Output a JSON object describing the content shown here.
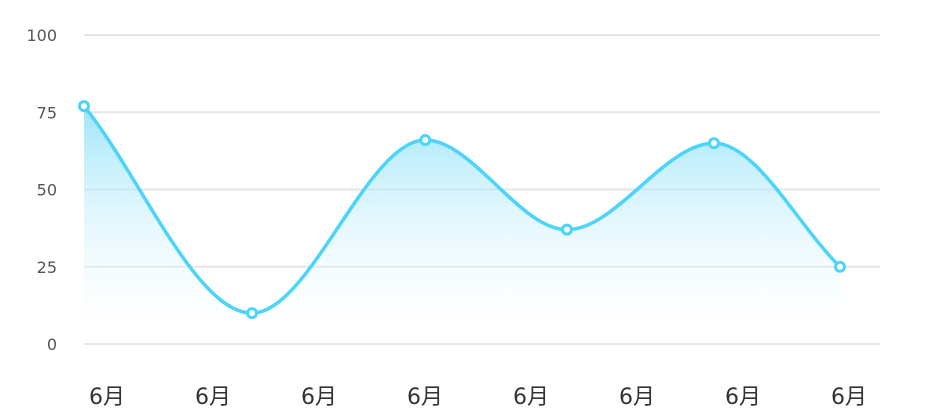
{
  "chart_data": {
    "type": "area",
    "title": "",
    "xlabel": "",
    "ylabel": "",
    "categories": [
      "6月",
      "6月",
      "6月",
      "6月",
      "6月",
      "6月",
      "6月",
      "6月"
    ],
    "x": [
      0,
      1.6,
      3.25,
      4.6,
      6,
      7.2
    ],
    "series": [
      {
        "values": [
          77,
          10,
          66,
          37,
          65,
          25
        ]
      }
    ],
    "y_ticks": [
      "0",
      "25",
      "50",
      "75",
      "100"
    ],
    "ylim": [
      0,
      100
    ],
    "smooth": true,
    "grid": true,
    "legend": "none",
    "colors": {
      "line": "#4dd4fb",
      "area_top": "#7fdcf8",
      "area_bottom": "#ffffff",
      "grid": "#e6e6e6"
    }
  }
}
